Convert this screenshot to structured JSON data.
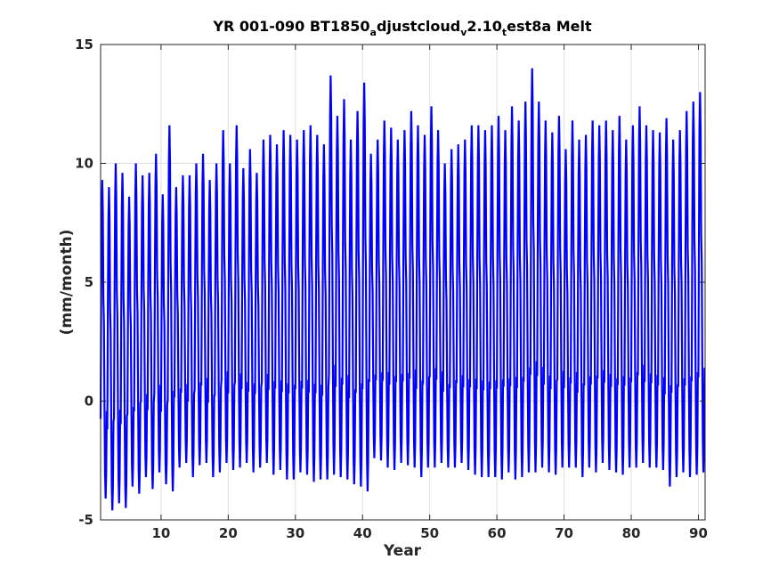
{
  "chart_data": {
    "type": "line",
    "title": {
      "parts": [
        {
          "text": "YR 001-090 BT1850",
          "sub": false
        },
        {
          "text": "a",
          "sub": true
        },
        {
          "text": "djustcloud",
          "sub": false
        },
        {
          "text": "v",
          "sub": true
        },
        {
          "text": "2.10",
          "sub": false
        },
        {
          "text": "t",
          "sub": true
        },
        {
          "text": "est8a Melt",
          "sub": false
        }
      ]
    },
    "xlabel": "Year",
    "ylabel": "(mm/month)",
    "xlim": [
      1,
      91
    ],
    "ylim": [
      -5,
      15
    ],
    "xticks": [
      10,
      20,
      30,
      40,
      50,
      60,
      70,
      80,
      90
    ],
    "yticks": [
      -5,
      0,
      5,
      10,
      15
    ],
    "grid": true,
    "series": [
      {
        "color": "#0000ff",
        "samples_per_year": 12,
        "annual_max": [
          9.3,
          9.0,
          10.0,
          9.6,
          8.6,
          10.0,
          9.5,
          9.6,
          10.4,
          8.7,
          11.6,
          9.0,
          9.5,
          9.5,
          10.0,
          10.4,
          9.3,
          10.0,
          11.4,
          10.0,
          11.6,
          9.8,
          10.6,
          9.6,
          11.0,
          11.2,
          10.8,
          11.4,
          11.2,
          11.0,
          11.4,
          11.6,
          11.2,
          10.8,
          13.7,
          12.0,
          12.7,
          11.0,
          12.2,
          13.4,
          10.4,
          11.0,
          11.8,
          11.5,
          11.0,
          11.4,
          12.2,
          11.6,
          11.2,
          12.4,
          11.4,
          10.0,
          10.6,
          10.8,
          11.0,
          11.6,
          11.6,
          11.4,
          11.6,
          12.0,
          11.4,
          12.4,
          11.8,
          12.6,
          14.0,
          12.6,
          11.8,
          11.3,
          12.0,
          10.6,
          11.8,
          11.0,
          11.2,
          11.8,
          11.6,
          11.8,
          11.4,
          12.0,
          11.0,
          11.6,
          12.4,
          11.6,
          11.4,
          11.3,
          11.9,
          11.0,
          11.4,
          12.2,
          12.6,
          13.0
        ],
        "annual_min": [
          -4.1,
          -4.6,
          -4.3,
          -4.5,
          -3.6,
          -3.9,
          -3.2,
          -3.7,
          -3.0,
          -3.5,
          -3.8,
          -2.8,
          -2.6,
          -3.2,
          -2.7,
          -2.6,
          -3.2,
          -3.0,
          -2.6,
          -2.9,
          -2.8,
          -2.6,
          -3.0,
          -2.8,
          -2.6,
          -3.1,
          -2.9,
          -3.3,
          -3.3,
          -3.0,
          -3.1,
          -3.4,
          -3.3,
          -3.3,
          -3.1,
          -3.2,
          -3.3,
          -3.5,
          -3.6,
          -3.8,
          -2.4,
          -2.5,
          -2.8,
          -2.9,
          -2.6,
          -2.7,
          -2.8,
          -3.2,
          -2.8,
          -2.8,
          -2.6,
          -2.8,
          -2.8,
          -2.6,
          -2.9,
          -3.1,
          -3.2,
          -3.2,
          -3.2,
          -3.3,
          -3.0,
          -3.3,
          -3.2,
          -3.0,
          -3.0,
          -2.8,
          -3.0,
          -3.1,
          -2.8,
          -2.8,
          -2.8,
          -3.2,
          -2.8,
          -3.0,
          -2.6,
          -2.9,
          -3.0,
          -3.1,
          -2.8,
          -2.8,
          -2.6,
          -2.8,
          -2.8,
          -2.9,
          -3.6,
          -3.2,
          -3.0,
          -3.2,
          -3.1,
          -3.0
        ]
      }
    ]
  }
}
